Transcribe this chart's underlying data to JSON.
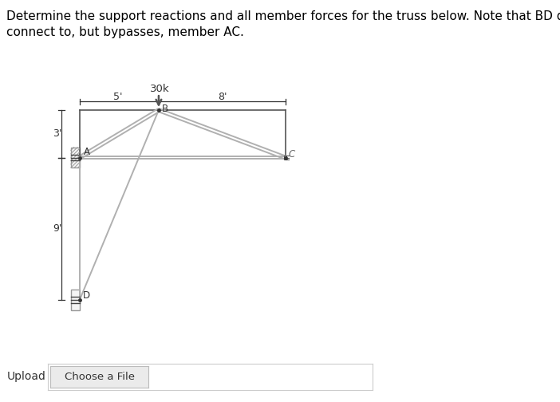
{
  "title_line1": "Determine the support reactions and all member forces for the truss below. Note that BD does not",
  "title_line2": "connect to, but bypasses, member AC.",
  "title_fontsize": 11,
  "bg_color": "#ffffff",
  "text_color": "#000000",
  "member_color": "#b0b0b0",
  "frame_color": "#555555",
  "member_lw": 1.4,
  "frame_lw": 1.2,
  "wall_hatch_color": "#999999",
  "load_color": "#555555",
  "dim_color": "#333333",
  "upload_button_text": "Choose a File",
  "upload_label": "Upload",
  "fig_width": 7.02,
  "fig_height": 5.04,
  "dpi": 100
}
